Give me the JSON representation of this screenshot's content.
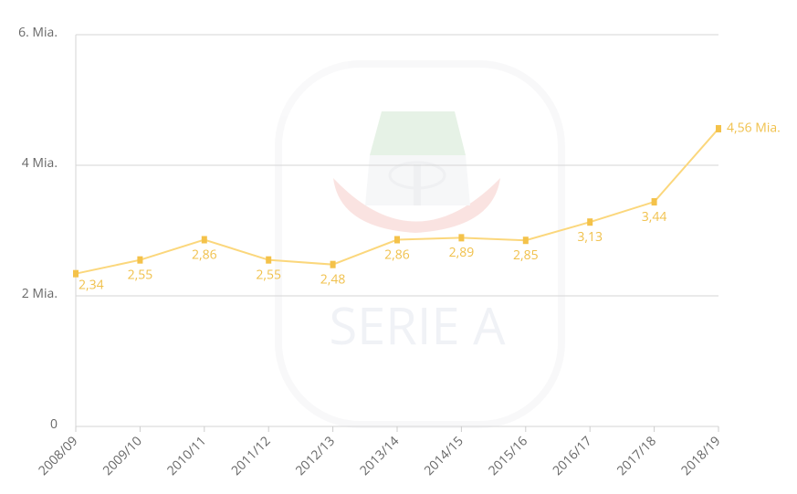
{
  "chart_data": {
    "type": "line",
    "watermark": "SERIE A",
    "categories": [
      "2008/09",
      "2009/10",
      "2010/11",
      "2011/12",
      "2012/13",
      "2013/14",
      "2014/15",
      "2015/16",
      "2016/17",
      "2017/18",
      "2018/19"
    ],
    "series": [
      {
        "color": "#fbd77c",
        "marker_color": "#f4c24a",
        "values": [
          2.34,
          2.55,
          2.86,
          2.55,
          2.48,
          2.86,
          2.89,
          2.85,
          3.13,
          3.44,
          4.56
        ],
        "value_labels": [
          "2,34",
          "2,55",
          "2,86",
          "2,55",
          "2,48",
          "2,86",
          "2,89",
          "2,85",
          "3,13",
          "3,44",
          "4,56 Mia."
        ]
      }
    ],
    "ylim": [
      0,
      6
    ],
    "yticks": [
      0,
      {
        "value": 2,
        "label": "2 Mia."
      },
      {
        "value": 4,
        "label": "4 Mia."
      },
      {
        "value": 6,
        "label": "6. Mia."
      }
    ],
    "grid": true
  }
}
